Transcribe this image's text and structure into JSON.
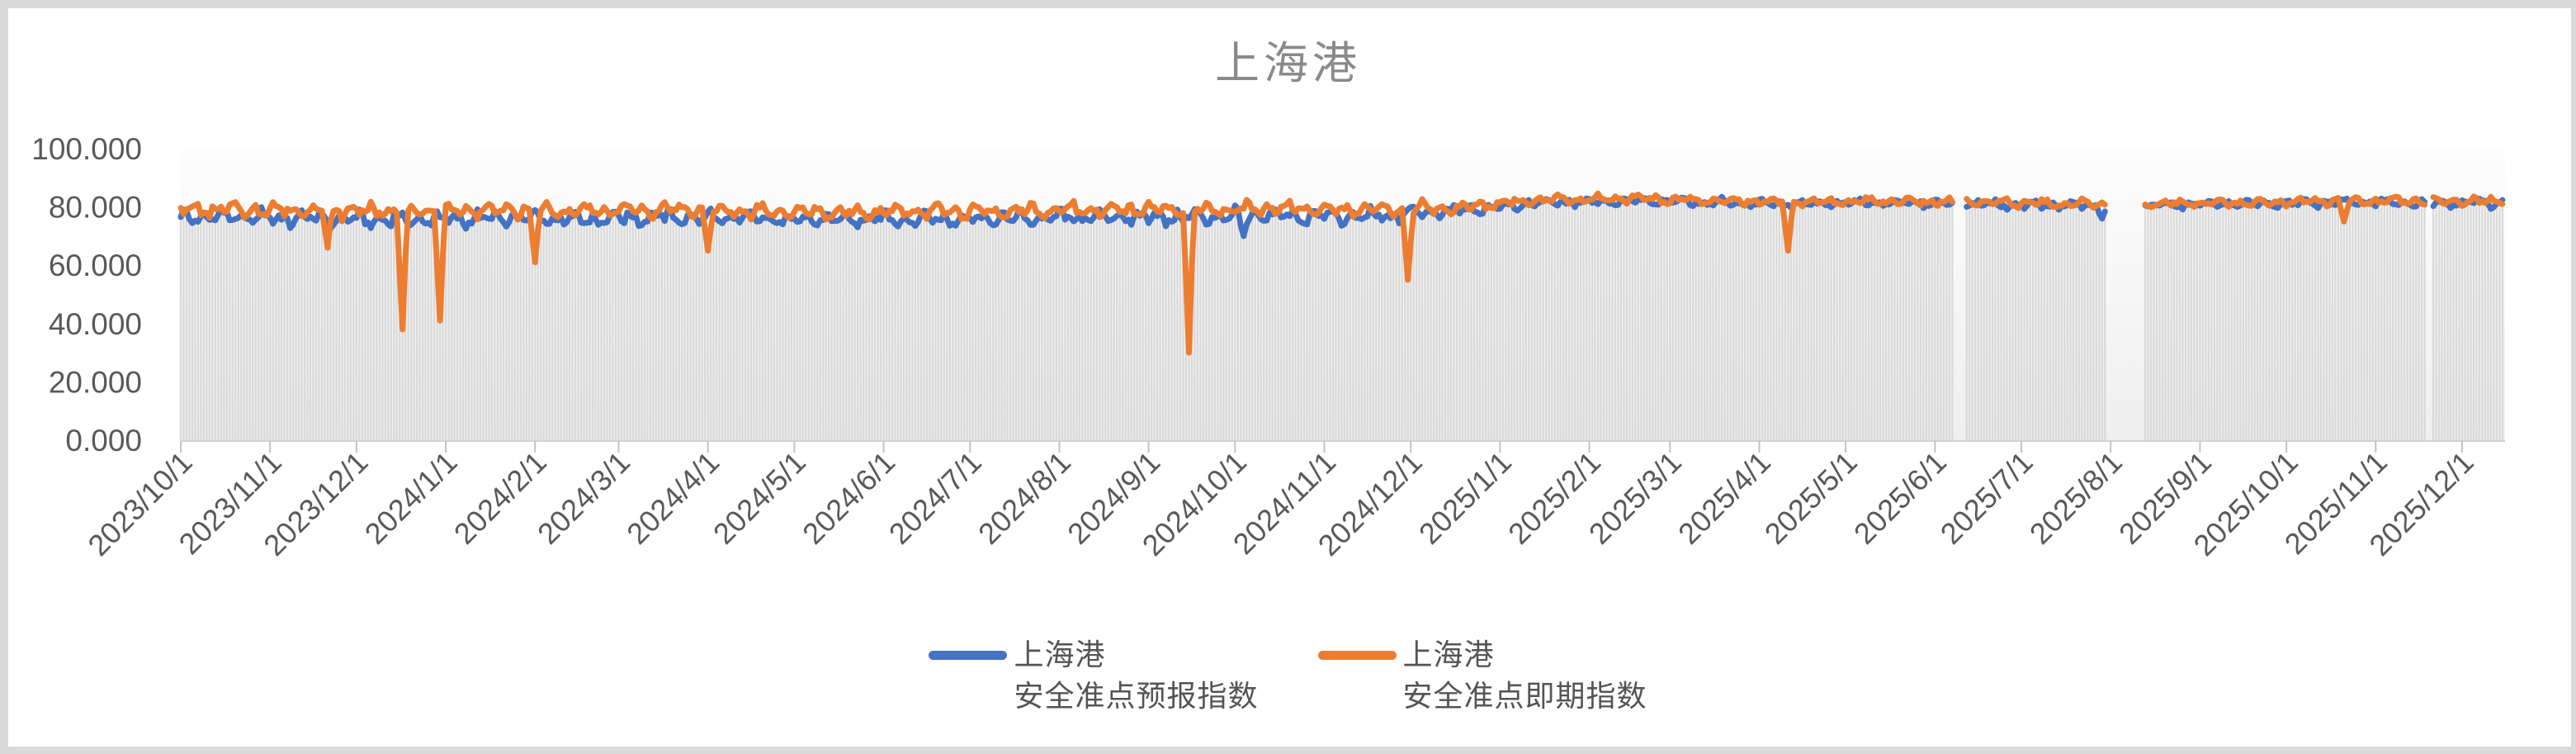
{
  "frame": {
    "outer_background": "#dadada",
    "canvas_background": "#ffffff"
  },
  "chart_data": {
    "type": "line",
    "title": "上海港",
    "title_color": "#8a8a8a",
    "x_range": {
      "start": "2023/10/1",
      "end": "2025/12/15"
    },
    "x_tick_labels": [
      "2023/10/1",
      "2023/11/1",
      "2023/12/1",
      "2024/1/1",
      "2024/2/1",
      "2024/3/1",
      "2024/4/1",
      "2024/5/1",
      "2024/6/1",
      "2024/7/1",
      "2024/8/1",
      "2024/9/1",
      "2024/10/1",
      "2024/11/1",
      "2024/12/1",
      "2025/1/1",
      "2025/2/1",
      "2025/3/1",
      "2025/4/1",
      "2025/5/1",
      "2025/6/1",
      "2025/7/1",
      "2025/8/1",
      "2025/9/1",
      "2025/10/1",
      "2025/11/1",
      "2025/12/1"
    ],
    "y_ticks": [
      {
        "label": "0.000",
        "value": 0
      },
      {
        "label": "20.000",
        "value": 20
      },
      {
        "label": "40.000",
        "value": 40
      },
      {
        "label": "60.000",
        "value": 60
      },
      {
        "label": "80.000",
        "value": 80
      },
      {
        "label": "100.000",
        "value": 100
      }
    ],
    "ylim": [
      0,
      100
    ],
    "grid": "none",
    "legend_position": "bottom-center",
    "series": [
      {
        "name_line1": "上海港",
        "name_line2": "安全准点预报指数",
        "color": "#4472C4",
        "monthly_avg": [
          76.5,
          76,
          75.5,
          76,
          76,
          76.5,
          76,
          75.5,
          76,
          76,
          76.5,
          76.5,
          77,
          76.5,
          78.5,
          81.5,
          82,
          81.5,
          81,
          81.5,
          81,
          80.5,
          80.5,
          81,
          81.5,
          81.5,
          81.5
        ],
        "dip_events": [
          {
            "date": "2024/10/4",
            "value": 70
          },
          {
            "date": "2025/7/29",
            "value": 76
          }
        ]
      },
      {
        "name_line1": "上海港",
        "name_line2": "安全准点即期指数",
        "color": "#ED7D31",
        "monthly_avg": [
          79,
          79,
          78.5,
          79,
          78.5,
          79,
          78.5,
          78,
          78.5,
          78.5,
          79,
          79,
          79.5,
          79,
          79.5,
          82.5,
          83,
          82,
          81.5,
          82,
          81.5,
          81,
          81,
          81.5,
          82,
          82,
          82
        ],
        "dip_events": [
          {
            "date": "2023/11/21",
            "value": 66
          },
          {
            "date": "2023/12/17",
            "value": 38
          },
          {
            "date": "2023/12/30",
            "value": 41
          },
          {
            "date": "2024/2/1",
            "value": 61
          },
          {
            "date": "2024/4/1",
            "value": 65
          },
          {
            "date": "2024/9/15",
            "value": 30
          },
          {
            "date": "2024/11/30",
            "value": 55
          },
          {
            "date": "2025/4/11",
            "value": 65
          },
          {
            "date": "2025/10/21",
            "value": 75
          }
        ]
      }
    ],
    "data_gaps": [
      {
        "from": "2025/6/8",
        "to": "2025/6/11"
      },
      {
        "from": "2025/7/31",
        "to": "2025/8/12"
      },
      {
        "from": "2025/11/19",
        "to": "2025/11/20"
      }
    ],
    "background_bars": {
      "description": "thin light-gray daily columns from the baseline up to the lower of the two line values",
      "color": "#d9d9d9"
    },
    "axis_color": "#d2d2d2",
    "tick_color": "#c3c3c3",
    "label_color": "#595959",
    "noise": {
      "daily_amplitude_2023_2024": 3.1,
      "amplitude_scale_2025": 0.55
    }
  }
}
